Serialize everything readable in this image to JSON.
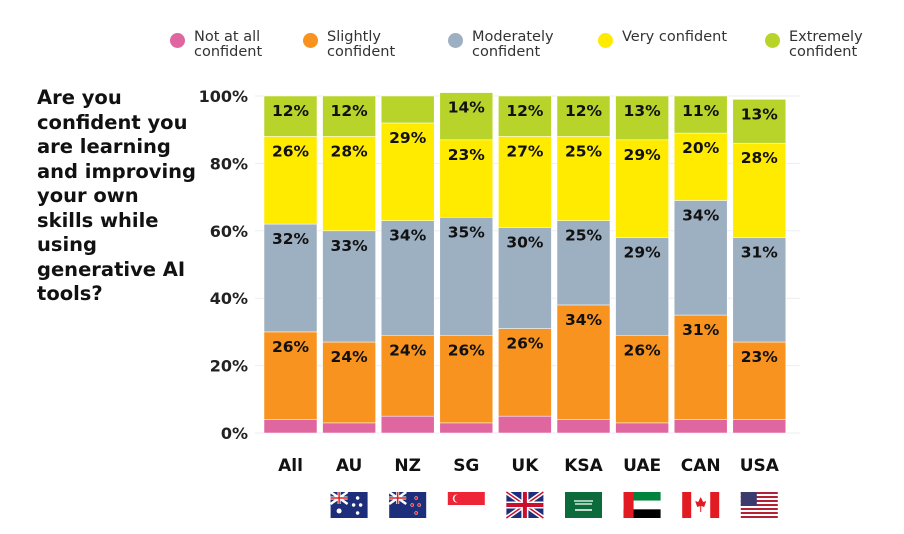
{
  "question": "Are you confident you are learning and improving your own skills while using generative AI tools?",
  "chart_data": {
    "type": "bar",
    "stacked": true,
    "title": "Are you confident you are learning and improving your own skills while using generative AI tools?",
    "categories": [
      "All",
      "AU",
      "NZ",
      "SG",
      "UK",
      "KSA",
      "UAE",
      "CAN",
      "USA"
    ],
    "ylim": [
      0,
      100
    ],
    "yticks": [
      "0%",
      "20%",
      "40%",
      "60%",
      "80%",
      "100%"
    ],
    "legend_position": "top",
    "series": [
      {
        "name": "Not at all confident",
        "color": "#e066a0",
        "values": [
          4,
          3,
          5,
          3,
          5,
          4,
          3,
          4,
          4
        ],
        "labels": [
          null,
          null,
          null,
          null,
          null,
          null,
          null,
          null,
          null
        ]
      },
      {
        "name": "Slightly confident",
        "color": "#f7931e",
        "values": [
          26,
          24,
          24,
          26,
          26,
          34,
          26,
          31,
          23
        ],
        "labels": [
          "26%",
          "24%",
          "24%",
          "26%",
          "26%",
          "34%",
          "26%",
          "31%",
          "23%"
        ]
      },
      {
        "name": "Moderately confident",
        "color": "#9db0c2",
        "values": [
          32,
          33,
          34,
          35,
          30,
          25,
          29,
          34,
          31
        ],
        "labels": [
          "32%",
          "33%",
          "34%",
          "35%",
          "30%",
          "25%",
          "29%",
          "34%",
          "31%"
        ]
      },
      {
        "name": "Very confident",
        "color": "#ffeb00",
        "values": [
          26,
          28,
          29,
          23,
          27,
          25,
          29,
          20,
          28
        ],
        "labels": [
          "26%",
          "28%",
          "29%",
          "23%",
          "27%",
          "25%",
          "29%",
          "20%",
          "28%"
        ]
      },
      {
        "name": "Extremely confident",
        "color": "#b8d42a",
        "values": [
          12,
          12,
          8,
          14,
          12,
          12,
          13,
          11,
          13
        ],
        "labels": [
          "12%",
          "12%",
          null,
          "14%",
          "12%",
          "12%",
          "13%",
          "11%",
          "13%"
        ]
      }
    ]
  },
  "flags": [
    "",
    "australia-flag",
    "new-zealand-flag",
    "singapore-flag",
    "uk-flag",
    "saudi-arabia-flag",
    "uae-flag",
    "canada-flag",
    "usa-flag"
  ]
}
